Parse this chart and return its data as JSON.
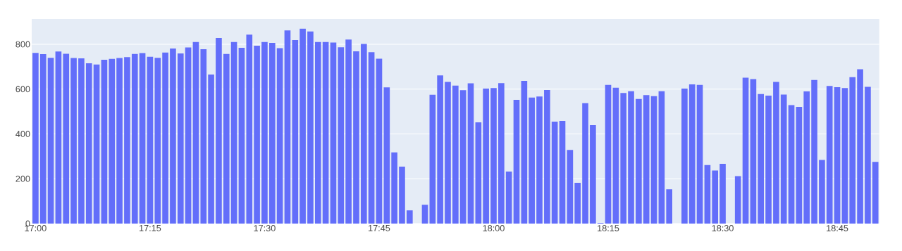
{
  "chart_data": {
    "type": "bar",
    "color": "#636efa",
    "grid": "y",
    "x": [
      17,
      17.0167,
      17.0333,
      17.05,
      17.0667,
      17.0833,
      17.1,
      17.1167,
      17.1333,
      17.15,
      17.1667,
      17.1833,
      17.2,
      17.2167,
      17.2333,
      17.25,
      17.2667,
      17.2833,
      17.3,
      17.3167,
      17.3333,
      17.35,
      17.3667,
      17.3833,
      17.4,
      17.4167,
      17.4333,
      17.45,
      17.4667,
      17.4833,
      17.5,
      17.5167,
      17.5333,
      17.55,
      17.5667,
      17.5833,
      17.6,
      17.6167,
      17.6333,
      17.65,
      17.6667,
      17.6833,
      17.7,
      17.7167,
      17.7333,
      17.75,
      17.7667,
      17.7833,
      17.8,
      17.8167,
      17.8333,
      17.85,
      17.8667,
      17.8833,
      17.9,
      17.9167,
      17.9333,
      17.95,
      17.9667,
      17.9833,
      18,
      18.0167,
      18.0333,
      18.05,
      18.0667,
      18.0833,
      18.1,
      18.1167,
      18.1333,
      18.15,
      18.1667,
      18.1833,
      18.2,
      18.2167,
      18.2333,
      18.25,
      18.2667,
      18.2833,
      18.3,
      18.3167,
      18.3333,
      18.35,
      18.3667,
      18.3833,
      18.4,
      18.4167,
      18.4333,
      18.45,
      18.4667,
      18.4833,
      18.5,
      18.5167,
      18.5333,
      18.55,
      18.5667,
      18.5833,
      18.6,
      18.6167,
      18.6333,
      18.65,
      18.6667,
      18.6833,
      18.7,
      18.7167,
      18.7333,
      18.75,
      18.7667,
      18.7833,
      18.8,
      18.8167,
      18.8333
    ],
    "values": [
      762,
      756,
      740,
      768,
      758,
      739,
      737,
      715,
      710,
      731,
      735,
      739,
      743,
      757,
      761,
      744,
      740,
      763,
      781,
      759,
      786,
      810,
      778,
      665,
      828,
      757,
      810,
      784,
      843,
      794,
      810,
      806,
      783,
      862,
      819,
      870,
      857,
      810,
      810,
      808,
      787,
      821,
      769,
      802,
      765,
      736,
      608,
      318,
      254,
      59,
      null,
      84,
      575,
      661,
      632,
      616,
      595,
      626,
      452,
      602,
      605,
      627,
      232,
      552,
      637,
      562,
      567,
      596,
      455,
      458,
      329,
      182,
      537,
      439,
      3,
      619,
      606,
      583,
      591,
      556,
      573,
      569,
      591,
      153,
      null,
      602,
      621,
      619,
      261,
      237,
      267,
      null,
      212,
      651,
      645,
      578,
      571,
      632,
      576,
      529,
      521,
      590,
      641,
      284,
      614,
      609,
      605,
      653,
      689,
      610,
      275
    ],
    "xlim": [
      16.9917,
      18.8417
    ],
    "ylim": [
      0,
      913
    ],
    "xticks": [
      {
        "value": 17,
        "label": "17:00"
      },
      {
        "value": 17.25,
        "label": "17:15"
      },
      {
        "value": 17.5,
        "label": "17:30"
      },
      {
        "value": 17.75,
        "label": "17:45"
      },
      {
        "value": 18,
        "label": "18:00"
      },
      {
        "value": 18.25,
        "label": "18:15"
      },
      {
        "value": 18.5,
        "label": "18:30"
      },
      {
        "value": 18.75,
        "label": "18:45"
      }
    ],
    "yticks": [
      0,
      200,
      400,
      600,
      800
    ]
  }
}
